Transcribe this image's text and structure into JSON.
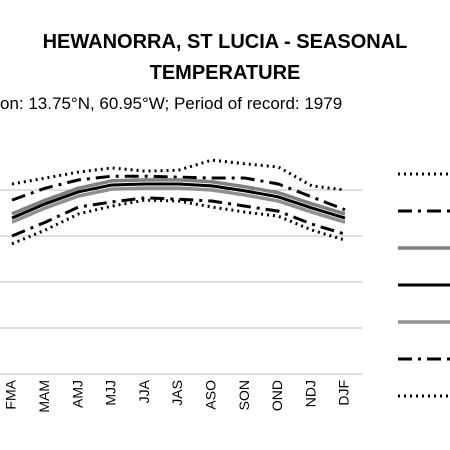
{
  "chart_data": {
    "type": "line",
    "title": [
      "HEWANORRA, ST LUCIA - SEASONAL",
      "TEMPERATURE"
    ],
    "subtitle": "on: 13.75°N, 60.95°W; Period of record: 1979",
    "categories": [
      "FMA",
      "MAM",
      "AMJ",
      "MJJ",
      "JJA",
      "JAS",
      "ASO",
      "SON",
      "OND",
      "NDJ",
      "DJF"
    ],
    "ylim": [
      0,
      5
    ],
    "yticks": [
      1,
      2,
      3,
      4
    ],
    "grid": true,
    "series": [
      {
        "color": "#000000",
        "style": "dotted",
        "width": 3,
        "values": [
          4.13,
          4.26,
          4.39,
          4.48,
          4.41,
          4.43,
          4.65,
          4.57,
          4.5,
          4.09,
          4.0
        ]
      },
      {
        "color": "#000000",
        "style": "dashdot",
        "width": 3,
        "values": [
          3.78,
          4.04,
          4.22,
          4.3,
          4.3,
          4.28,
          4.26,
          4.26,
          4.13,
          3.85,
          3.57
        ]
      },
      {
        "color": "#808080",
        "style": "solid",
        "width": 3.5,
        "values": [
          3.48,
          3.78,
          4.04,
          4.2,
          4.22,
          4.22,
          4.18,
          4.07,
          3.94,
          3.7,
          3.48
        ]
      },
      {
        "color": "#000000",
        "style": "solid",
        "width": 3,
        "values": [
          3.39,
          3.7,
          3.96,
          4.11,
          4.13,
          4.13,
          4.09,
          3.98,
          3.85,
          3.61,
          3.39
        ]
      },
      {
        "color": "#909090",
        "style": "solid",
        "width": 3.5,
        "values": [
          3.3,
          3.61,
          3.87,
          4.02,
          4.04,
          4.04,
          4.0,
          3.89,
          3.76,
          3.52,
          3.3
        ]
      },
      {
        "color": "#000000",
        "style": "dashdot",
        "width": 3,
        "values": [
          3.0,
          3.3,
          3.63,
          3.74,
          3.83,
          3.8,
          3.76,
          3.65,
          3.54,
          3.26,
          3.04
        ]
      },
      {
        "color": "#000000",
        "style": "dotted",
        "width": 3,
        "values": [
          2.83,
          3.13,
          3.48,
          3.65,
          3.78,
          3.76,
          3.63,
          3.52,
          3.43,
          3.13,
          2.91
        ]
      }
    ]
  }
}
